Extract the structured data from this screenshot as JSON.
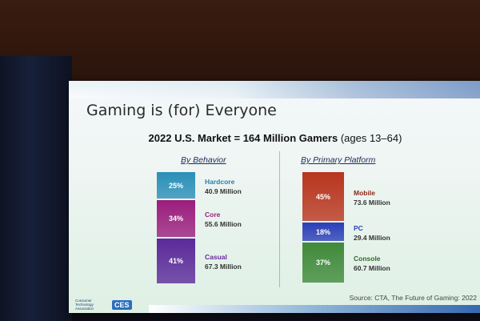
{
  "slide": {
    "title": "Gaming is (for) Everyone",
    "subtitle_bold": "2022 U.S. Market = 164 Million Gamers",
    "subtitle_rest": "(ages 13–64)",
    "source": "Source: CTA, The Future of Gaming: 2022",
    "logo_text": "Consumer Technology Association",
    "logo_badge": "CES"
  },
  "chart_data": [
    {
      "type": "bar",
      "stacked": true,
      "title": "By Behavior",
      "series": [
        {
          "name": "Hardcore",
          "percent_label": "25%",
          "value_label": "40.9 Million",
          "value": 40.9,
          "color": "#2b8fb8"
        },
        {
          "name": "Core",
          "percent_label": "34%",
          "value_label": "55.6 Million",
          "value": 55.6,
          "color": "#9a1e7d"
        },
        {
          "name": "Casual",
          "percent_label": "41%",
          "value_label": "67.3 Million",
          "value": 67.3,
          "color": "#5b2a9a"
        }
      ]
    },
    {
      "type": "bar",
      "stacked": true,
      "title": "By Primary Platform",
      "series": [
        {
          "name": "Mobile",
          "percent_label": "45%",
          "value_label": "73.6 Million",
          "value": 73.6,
          "color": "#b8351e"
        },
        {
          "name": "PC",
          "percent_label": "18%",
          "value_label": "29.4 Million",
          "value": 29.4,
          "color": "#2b3fb8"
        },
        {
          "name": "Console",
          "percent_label": "37%",
          "value_label": "60.7 Million",
          "value": 60.7,
          "color": "#3f8a3a"
        }
      ]
    }
  ]
}
